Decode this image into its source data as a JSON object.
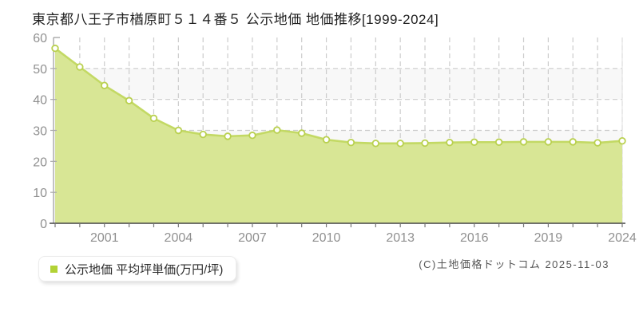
{
  "title": "東京都八王子市楢原町５１４番５ 公示地価 地価推移[1999-2024]",
  "legend": {
    "label": "公示地価 平均坪単価(万円/坪)"
  },
  "footer": {
    "copyright": "(C)土地価格ドットコム 2025-11-03"
  },
  "chart_data": {
    "type": "area",
    "title": "東京都八王子市楢原町５１４番５ 公示地価 地価推移[1999-2024]",
    "series_name": "公示地価 平均坪単価(万円/坪)",
    "unit": "万円/坪",
    "x": [
      1999,
      2000,
      2001,
      2002,
      2003,
      2004,
      2005,
      2006,
      2007,
      2008,
      2009,
      2010,
      2011,
      2012,
      2013,
      2014,
      2015,
      2016,
      2017,
      2018,
      2019,
      2022,
      2023,
      2024
    ],
    "values": [
      56.5,
      50.5,
      44.5,
      39.6,
      33.9,
      30.0,
      28.7,
      28.1,
      28.4,
      30.1,
      29.1,
      27.0,
      26.1,
      25.8,
      25.8,
      25.9,
      26.1,
      26.2,
      26.2,
      26.3,
      26.3,
      26.3,
      26.0,
      26.6
    ],
    "x_tick_labels": [
      "2001",
      "2004",
      "2007",
      "2010",
      "2013",
      "2016",
      "2019",
      "2024"
    ],
    "x_tick_indices": [
      2,
      5,
      8,
      11,
      14,
      17,
      20,
      23
    ],
    "y_ticks": [
      0,
      10,
      20,
      30,
      40,
      50,
      60
    ],
    "ylim": [
      0,
      60
    ],
    "grid": "dashed-both-axes",
    "legend_position": "bottom-left",
    "colors": {
      "area_fill": "#d8e695",
      "line": "#c3d964",
      "marker_fill": "#ffffff",
      "marker_stroke": "#b9d04f",
      "grid": "#cccccc",
      "band": "#f8f8f8",
      "y_axis": "#8a8a8a",
      "x_axis": "#444444",
      "tick_label": "#909090",
      "legend_marker": "#b2d235"
    }
  }
}
